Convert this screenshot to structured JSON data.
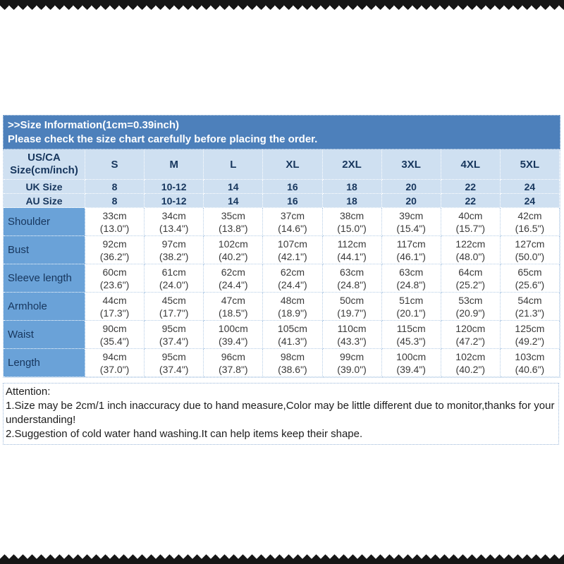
{
  "header": {
    "title": ">>Size Information(1cm=0.39inch)",
    "subtitle": "Please check the size chart carefully before placing the order."
  },
  "table": {
    "corner_label": "US/CA\nSize(cm/inch)",
    "size_labels": [
      "S",
      "M",
      "L",
      "XL",
      "2XL",
      "3XL",
      "4XL",
      "5XL"
    ],
    "uk_row": {
      "label": "UK Size",
      "values": [
        "8",
        "10-12",
        "14",
        "16",
        "18",
        "20",
        "22",
        "24"
      ]
    },
    "au_row": {
      "label": "AU Size",
      "values": [
        "8",
        "10-12",
        "14",
        "16",
        "18",
        "20",
        "22",
        "24"
      ]
    },
    "measurements": [
      {
        "label": "Shoulder",
        "cm": [
          "33cm",
          "34cm",
          "35cm",
          "37cm",
          "38cm",
          "39cm",
          "40cm",
          "42cm"
        ],
        "in": [
          "(13.0\")",
          "(13.4\")",
          "(13.8\")",
          "(14.6\")",
          "(15.0\")",
          "(15.4\")",
          "(15.7\")",
          "(16.5\")"
        ]
      },
      {
        "label": "Bust",
        "cm": [
          "92cm",
          "97cm",
          "102cm",
          "107cm",
          "112cm",
          "117cm",
          "122cm",
          "127cm"
        ],
        "in": [
          "(36.2\")",
          "(38.2\")",
          "(40.2\")",
          "(42.1\")",
          "(44.1\")",
          "(46.1\")",
          "(48.0\")",
          "(50.0\")"
        ]
      },
      {
        "label": "Sleeve length",
        "cm": [
          "60cm",
          "61cm",
          "62cm",
          "62cm",
          "63cm",
          "63cm",
          "64cm",
          "65cm"
        ],
        "in": [
          "(23.6\")",
          "(24.0\")",
          "(24.4\")",
          "(24.4\")",
          "(24.8\")",
          "(24.8\")",
          "(25.2\")",
          "(25.6\")"
        ]
      },
      {
        "label": "Armhole",
        "cm": [
          "44cm",
          "45cm",
          "47cm",
          "48cm",
          "50cm",
          "51cm",
          "53cm",
          "54cm"
        ],
        "in": [
          "(17.3\")",
          "(17.7\")",
          "(18.5\")",
          "(18.9\")",
          "(19.7\")",
          "(20.1\")",
          "(20.9\")",
          "(21.3\")"
        ]
      },
      {
        "label": "Waist",
        "cm": [
          "90cm",
          "95cm",
          "100cm",
          "105cm",
          "110cm",
          "115cm",
          "120cm",
          "125cm"
        ],
        "in": [
          "(35.4\")",
          "(37.4\")",
          "(39.4\")",
          "(41.3\")",
          "(43.3\")",
          "(45.3\")",
          "(47.2\")",
          "(49.2\")"
        ]
      },
      {
        "label": "Length",
        "cm": [
          "94cm",
          "95cm",
          "96cm",
          "98cm",
          "99cm",
          "100cm",
          "102cm",
          "103cm"
        ],
        "in": [
          "(37.0\")",
          "(37.4\")",
          "(37.8\")",
          "(38.6\")",
          "(39.0\")",
          "(39.4\")",
          "(40.2\")",
          "(40.6\")"
        ]
      }
    ]
  },
  "attention": {
    "heading": "Attention:",
    "line1": "1.Size may be 2cm/1 inch inaccuracy due to hand measure,Color may be little different due to monitor,thanks for your understanding!",
    "line2": "2.Suggestion of cold water hand washing.It can help items keep their shape."
  },
  "colors": {
    "title_band": "#4d80bb",
    "header_bg": "#cfe0f1",
    "label_bg": "#6aa2d8",
    "navy_text": "#17365d",
    "band_text": "#ffffff",
    "cell_text": "#3a3a3a",
    "grid_border": "#b4cce6",
    "sawtooth": "#161616"
  }
}
